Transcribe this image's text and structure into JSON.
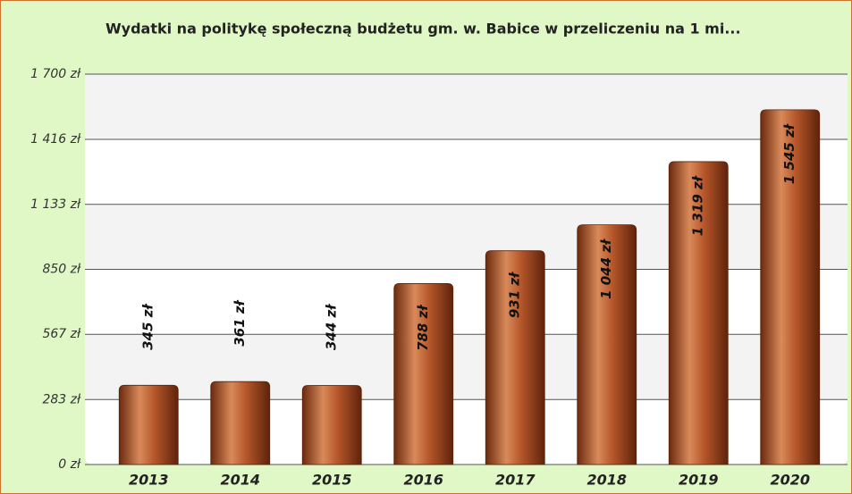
{
  "chart_data": {
    "type": "bar",
    "title": "Wydatki na politykę społeczną budżetu gm. w. Babice w przeliczeniu na 1 mi...",
    "categories": [
      "2013",
      "2014",
      "2015",
      "2016",
      "2017",
      "2018",
      "2019",
      "2020"
    ],
    "values": [
      345,
      361,
      344,
      788,
      931,
      1044,
      1319,
      1545
    ],
    "value_labels": [
      "345 zł",
      "361 zł",
      "344 zł",
      "788 zł",
      "931 zł",
      "1 044 zł",
      "1 319 zł",
      "1 545 zł"
    ],
    "color": "#a0441c",
    "ylim": [
      0,
      1700
    ],
    "yticks": [
      {
        "value": 0,
        "label": "0 zł"
      },
      {
        "value": 283,
        "label": "283 zł"
      },
      {
        "value": 567,
        "label": "567 zł"
      },
      {
        "value": 850,
        "label": "850 zł"
      },
      {
        "value": 1133,
        "label": "1 133 zł"
      },
      {
        "value": 1416,
        "label": "1 416 zł"
      },
      {
        "value": 1700,
        "label": "1 700 zł"
      }
    ],
    "grid": true
  }
}
